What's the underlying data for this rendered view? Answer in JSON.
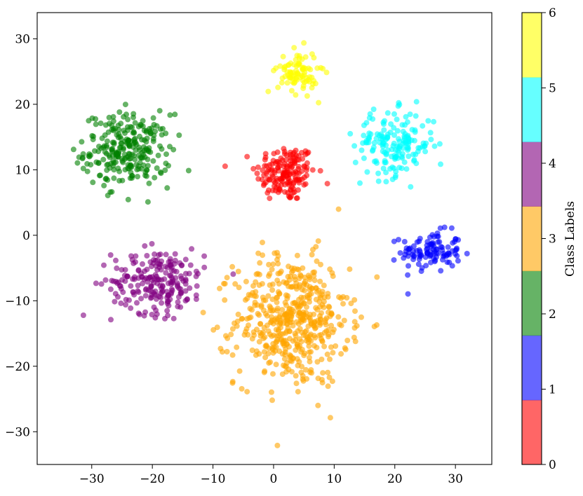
{
  "chart_data": {
    "type": "scatter",
    "title": "",
    "xlabel": "",
    "ylabel": "",
    "xlim": [
      -39,
      36
    ],
    "ylim": [
      -35,
      34
    ],
    "xticks": [
      -30,
      -20,
      -10,
      0,
      10,
      20,
      30
    ],
    "xtick_labels": [
      "−30",
      "−20",
      "−10",
      "0",
      "10",
      "20",
      "30"
    ],
    "yticks": [
      30,
      20,
      10,
      0,
      -10,
      -20,
      -30
    ],
    "ytick_labels": [
      "30",
      "20",
      "10",
      "0",
      "−10",
      "−20",
      "−30"
    ],
    "grid": false,
    "point_alpha": 0.6,
    "colorbar": {
      "label": "Class Labels",
      "range": [
        0,
        6
      ],
      "ticks": [
        0,
        1,
        2,
        3,
        4,
        5,
        6
      ],
      "tick_labels": [
        "0",
        "1",
        "2",
        "3",
        "4",
        "5",
        "6"
      ],
      "colors": [
        "#ff0000",
        "#0000ff",
        "#008000",
        "#ffa500",
        "#800080",
        "#00ffff",
        "#ffff00"
      ]
    },
    "clusters": [
      {
        "class": 0,
        "color": "#ff0000",
        "center": [
          2,
          9.5
        ],
        "spread": [
          4.5,
          4.0
        ],
        "count": 170
      },
      {
        "class": 1,
        "color": "#0000ff",
        "center": [
          26,
          -2.5
        ],
        "spread": [
          4.5,
          2.8
        ],
        "count": 110
      },
      {
        "class": 2,
        "color": "#008000",
        "center": [
          -24,
          13
        ],
        "spread": [
          6.5,
          5.0
        ],
        "count": 260
      },
      {
        "class": 3,
        "color": "#ffa500",
        "center": [
          3,
          -13
        ],
        "spread": [
          8.5,
          9.0
        ],
        "count": 520
      },
      {
        "class": 4,
        "color": "#800080",
        "center": [
          -19,
          -7
        ],
        "spread": [
          7.0,
          4.5
        ],
        "count": 220
      },
      {
        "class": 5,
        "color": "#00ffff",
        "center": [
          20,
          14
        ],
        "spread": [
          6.0,
          4.5
        ],
        "count": 170
      },
      {
        "class": 6,
        "color": "#ffff00",
        "center": [
          4,
          25
        ],
        "spread": [
          3.0,
          3.0
        ],
        "count": 90
      }
    ]
  }
}
